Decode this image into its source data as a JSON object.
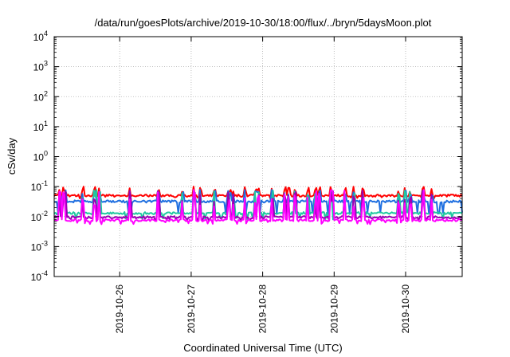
{
  "chart_data": {
    "type": "line",
    "title": "/data/run/goesPlots/archive/2019-10-30/18:00/flux/../bryn/5daysMoon.plot",
    "xlabel": "Coordinated Universal Time (UTC)",
    "ylabel": "cSv/day",
    "yscale": "log",
    "ylim": [
      0.0001,
      10000
    ],
    "xlim": [
      "2019-10-25 02:00",
      "2019-10-30 19:00"
    ],
    "grid": true,
    "legend": "none",
    "x_ticks": [
      "2019-10-26",
      "2019-10-27",
      "2019-10-28",
      "2019-10-29",
      "2019-10-30"
    ],
    "y_ticks": [
      {
        "base": "10",
        "exp": "-4"
      },
      {
        "base": "10",
        "exp": "-3"
      },
      {
        "base": "10",
        "exp": "-2"
      },
      {
        "base": "10",
        "exp": "-1"
      },
      {
        "base": "10",
        "exp": "0"
      },
      {
        "base": "10",
        "exp": "1"
      },
      {
        "base": "10",
        "exp": "2"
      },
      {
        "base": "10",
        "exp": "3"
      },
      {
        "base": "10",
        "exp": "4"
      }
    ],
    "series": [
      {
        "color": "#ff0000",
        "baseline": 0.05,
        "spike_to": 0.1,
        "dip_to": 0.04
      },
      {
        "color": "#1f6fe0",
        "baseline": 0.032,
        "spike_to": 0.08,
        "dip_to": 0.012
      },
      {
        "color": "#20c8a0",
        "baseline": 0.013,
        "spike_to": 0.08,
        "dip_to": 0.008
      },
      {
        "color": "#9a00b4",
        "baseline": 0.0095,
        "spike_to": 0.08,
        "dip_to": 0.007
      },
      {
        "color": "#ff00ff",
        "baseline": 0.0075,
        "spike_to": 0.08,
        "dip_to": 0.0055
      }
    ]
  }
}
